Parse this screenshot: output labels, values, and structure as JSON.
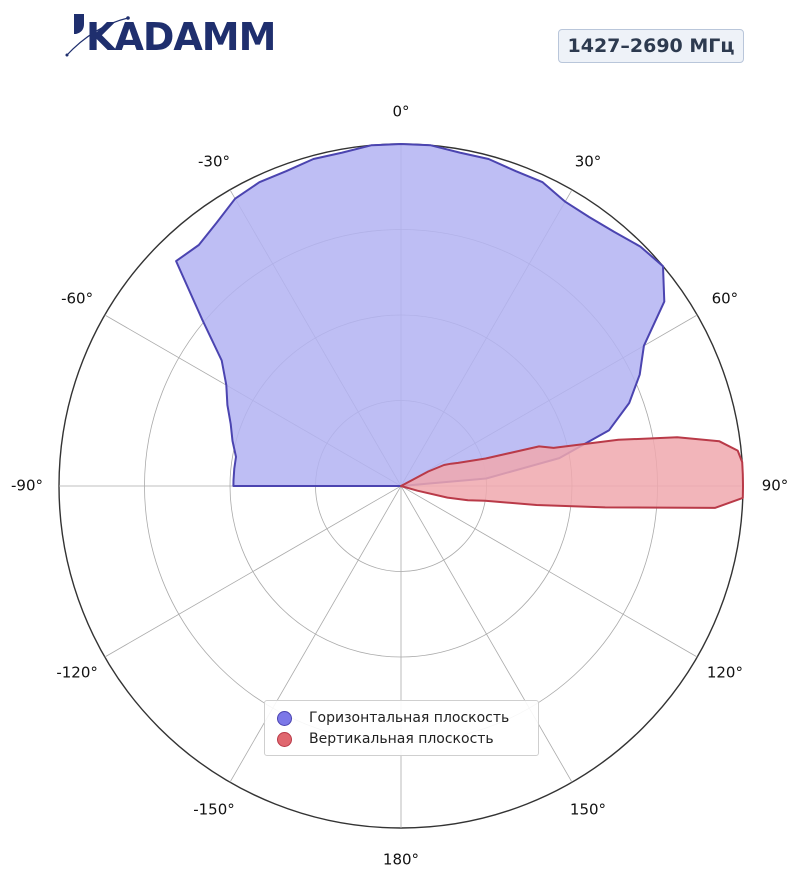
{
  "header": {
    "logo_text": "KADAMM",
    "frequency_badge": "1427–2690 МГц"
  },
  "colors": {
    "horizontal_fill": "#b3b3f2",
    "horizontal_stroke": "#4b44b0",
    "vertical_fill": "#f0a8ae",
    "vertical_stroke": "#b93a48",
    "axis": "#333333",
    "grid": "#aaaaaa",
    "brand": "#1f2f6e"
  },
  "chart_data": {
    "type": "polar",
    "angle_ticks": [
      "0°",
      "30°",
      "60°",
      "90°",
      "120°",
      "150°",
      "180°",
      "-150°",
      "-120°",
      "-90°",
      "-60°",
      "-30°"
    ],
    "angle_tick_values": [
      0,
      30,
      60,
      90,
      120,
      150,
      180,
      -150,
      -120,
      -90,
      -60,
      -30
    ],
    "radial_range": [
      0,
      1
    ],
    "radial_gridlines": [
      0.25,
      0.5,
      0.75,
      1.0
    ],
    "grid": true,
    "legend_position": "bottom-center",
    "series": [
      {
        "name": "Горизонтальная плоскость",
        "color_key": "horizontal",
        "points": [
          [
            -90,
            0.0
          ],
          [
            -90,
            0.49
          ],
          [
            -88,
            0.49
          ],
          [
            -84,
            0.49
          ],
          [
            -80,
            0.49
          ],
          [
            -75,
            0.51
          ],
          [
            -70,
            0.53
          ],
          [
            -65,
            0.56
          ],
          [
            -60,
            0.59
          ],
          [
            -55,
            0.64
          ],
          [
            -50,
            0.76
          ],
          [
            -45,
            0.93
          ],
          [
            -40,
            0.92
          ],
          [
            -35,
            0.94
          ],
          [
            -30,
            0.97
          ],
          [
            -25,
            0.98
          ],
          [
            -20,
            0.98
          ],
          [
            -15,
            0.99
          ],
          [
            -10,
            0.99
          ],
          [
            -5,
            1.0
          ],
          [
            0,
            1.0
          ],
          [
            5,
            1.0
          ],
          [
            10,
            0.99
          ],
          [
            15,
            0.99
          ],
          [
            20,
            0.98
          ],
          [
            25,
            0.98
          ],
          [
            30,
            0.96
          ],
          [
            35,
            0.96
          ],
          [
            40,
            0.97
          ],
          [
            45,
            0.99
          ],
          [
            50,
            1.0
          ],
          [
            55,
            0.94
          ],
          [
            60,
            0.82
          ],
          [
            65,
            0.77
          ],
          [
            70,
            0.71
          ],
          [
            75,
            0.63
          ],
          [
            80,
            0.47
          ],
          [
            85,
            0.25
          ],
          [
            90,
            0.0
          ]
        ]
      },
      {
        "name": "Вертикальная плоскость",
        "color_key": "vertical",
        "points": [
          [
            0,
            0.0
          ],
          [
            62,
            0.09
          ],
          [
            64,
            0.14
          ],
          [
            66,
            0.16
          ],
          [
            68,
            0.18
          ],
          [
            72,
            0.26
          ],
          [
            74,
            0.42
          ],
          [
            76,
            0.46
          ],
          [
            78,
            0.65
          ],
          [
            80,
            0.82
          ],
          [
            82,
            0.94
          ],
          [
            84,
            0.99
          ],
          [
            86,
            1.0
          ],
          [
            88,
            1.0
          ],
          [
            90,
            1.0
          ],
          [
            92,
            1.0
          ],
          [
            94,
            0.92
          ],
          [
            96,
            0.6
          ],
          [
            98,
            0.4
          ],
          [
            100,
            0.25
          ],
          [
            102,
            0.2
          ],
          [
            104,
            0.14
          ],
          [
            106,
            0.05
          ],
          [
            108,
            0.0
          ]
        ]
      }
    ]
  }
}
